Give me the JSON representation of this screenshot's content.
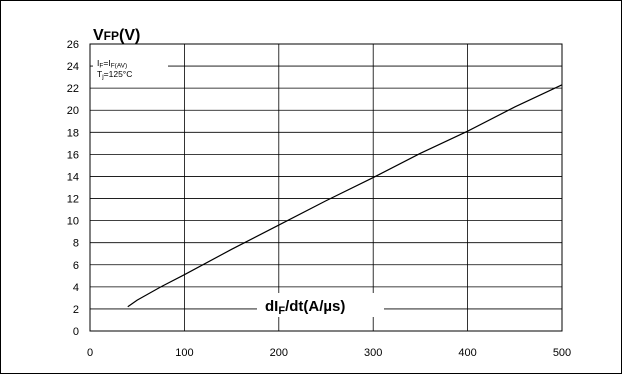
{
  "chart_data": {
    "type": "line",
    "ylabel": {
      "main": "V",
      "sub": "FP",
      "unit": "(V)"
    },
    "xlabel": {
      "main": "dI",
      "sub": "F",
      "unit": "/dt(A/µs)"
    },
    "annotations": [
      {
        "main": "I",
        "sub": "F",
        "mid": "=I",
        "sub2": "F(AV)"
      },
      {
        "main": "T",
        "sub": "j",
        "mid": "=125°C",
        "sub2": ""
      }
    ],
    "xlim": [
      0,
      500
    ],
    "ylim": [
      0,
      26
    ],
    "x_ticks": [
      0,
      100,
      200,
      300,
      400,
      500
    ],
    "y_ticks": [
      0,
      2,
      4,
      6,
      8,
      10,
      12,
      14,
      16,
      18,
      20,
      22,
      24,
      26
    ],
    "grid": true,
    "series": [
      {
        "x": [
          40,
          50,
          75,
          100,
          150,
          200,
          250,
          300,
          350,
          400,
          450,
          500
        ],
        "y": [
          2.2,
          2.8,
          4.0,
          5.1,
          7.4,
          9.6,
          11.8,
          13.9,
          16.1,
          18.1,
          20.3,
          22.3
        ]
      }
    ]
  }
}
